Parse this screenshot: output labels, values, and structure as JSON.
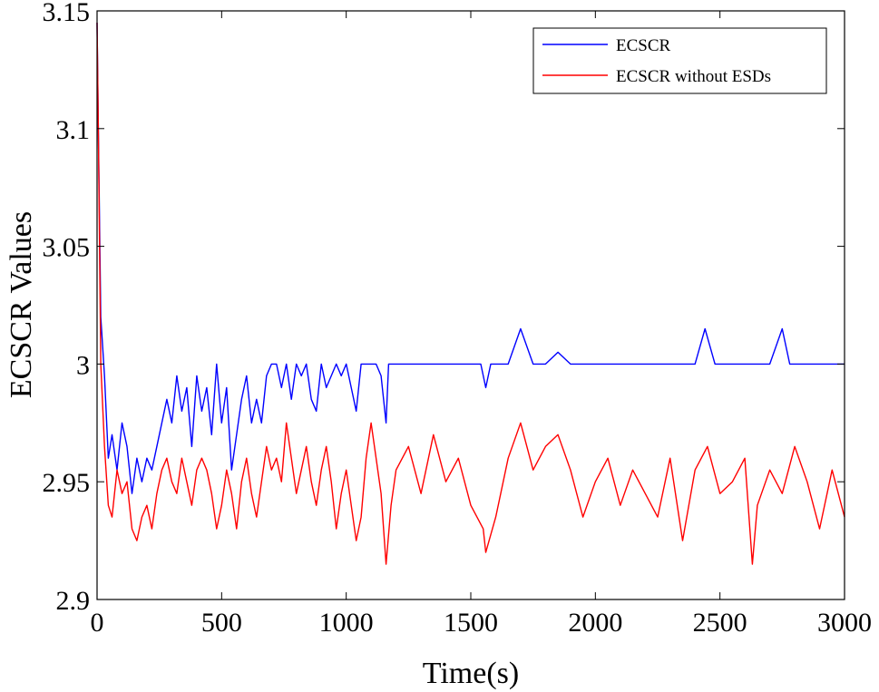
{
  "chart_data": {
    "type": "line",
    "title": "",
    "xlabel": "Time(s)",
    "ylabel": "ECSCR Values",
    "xlim": [
      0,
      3000
    ],
    "ylim": [
      2.9,
      3.15
    ],
    "grid": false,
    "legend_position": "top-right",
    "x_ticks": [
      {
        "value": 0,
        "label": "0"
      },
      {
        "value": 500,
        "label": "500"
      },
      {
        "value": 1000,
        "label": "1000"
      },
      {
        "value": 1500,
        "label": "1500"
      },
      {
        "value": 2000,
        "label": "2000"
      },
      {
        "value": 2500,
        "label": "2500"
      },
      {
        "value": 3000,
        "label": "3000"
      }
    ],
    "y_ticks": [
      {
        "value": 2.9,
        "label": "2.9"
      },
      {
        "value": 2.95,
        "label": "2.95"
      },
      {
        "value": 3.0,
        "label": "3"
      },
      {
        "value": 3.05,
        "label": "3.05"
      },
      {
        "value": 3.1,
        "label": "3.1"
      },
      {
        "value": 3.15,
        "label": "3.15"
      }
    ],
    "series": [
      {
        "name": "ECSCR",
        "color": "#0000ff",
        "x": [
          0,
          5,
          15,
          30,
          45,
          60,
          80,
          100,
          120,
          140,
          160,
          180,
          200,
          220,
          240,
          260,
          280,
          300,
          320,
          340,
          360,
          380,
          400,
          420,
          440,
          460,
          480,
          500,
          520,
          540,
          560,
          580,
          600,
          620,
          640,
          660,
          680,
          700,
          720,
          740,
          760,
          780,
          800,
          820,
          840,
          860,
          880,
          900,
          920,
          940,
          960,
          980,
          1000,
          1020,
          1040,
          1060,
          1080,
          1100,
          1120,
          1140,
          1160,
          1170,
          1180,
          1200,
          1250,
          1300,
          1350,
          1400,
          1450,
          1500,
          1540,
          1560,
          1580,
          1600,
          1650,
          1700,
          1750,
          1800,
          1850,
          1900,
          1950,
          2000,
          2050,
          2100,
          2150,
          2200,
          2250,
          2300,
          2350,
          2400,
          2440,
          2480,
          2500,
          2550,
          2600,
          2650,
          2700,
          2750,
          2780,
          2800,
          2850,
          2900,
          2950,
          3000
        ],
        "values": [
          3.145,
          3.1,
          3.02,
          2.995,
          2.96,
          2.97,
          2.955,
          2.975,
          2.965,
          2.945,
          2.96,
          2.95,
          2.96,
          2.955,
          2.965,
          2.975,
          2.985,
          2.975,
          2.995,
          2.98,
          2.99,
          2.965,
          2.995,
          2.98,
          2.99,
          2.97,
          3.0,
          2.975,
          2.99,
          2.955,
          2.97,
          2.985,
          2.995,
          2.975,
          2.985,
          2.975,
          2.995,
          3.0,
          3.0,
          2.99,
          3.0,
          2.985,
          3.0,
          2.995,
          3.0,
          2.985,
          2.98,
          3.0,
          2.99,
          2.995,
          3.0,
          2.995,
          3.0,
          2.99,
          2.98,
          3.0,
          3.0,
          3.0,
          3.0,
          2.995,
          2.975,
          3.0,
          3.0,
          3.0,
          3.0,
          3.0,
          3.0,
          3.0,
          3.0,
          3.0,
          3.0,
          2.99,
          3.0,
          3.0,
          3.0,
          3.015,
          3.0,
          3.0,
          3.005,
          3.0,
          3.0,
          3.0,
          3.0,
          3.0,
          3.0,
          3.0,
          3.0,
          3.0,
          3.0,
          3.0,
          3.015,
          3.0,
          3.0,
          3.0,
          3.0,
          3.0,
          3.0,
          3.015,
          3.0,
          3.0,
          3.0,
          3.0,
          3.0,
          3.0
        ]
      },
      {
        "name": "ECSCR without ESDs",
        "color": "#ff0000",
        "x": [
          0,
          5,
          15,
          30,
          45,
          60,
          80,
          100,
          120,
          140,
          160,
          180,
          200,
          220,
          240,
          260,
          280,
          300,
          320,
          340,
          360,
          380,
          400,
          420,
          440,
          460,
          480,
          500,
          520,
          540,
          560,
          580,
          600,
          620,
          640,
          660,
          680,
          700,
          720,
          740,
          760,
          780,
          800,
          820,
          840,
          860,
          880,
          900,
          920,
          940,
          960,
          980,
          1000,
          1020,
          1040,
          1060,
          1080,
          1100,
          1120,
          1140,
          1160,
          1180,
          1200,
          1250,
          1300,
          1350,
          1400,
          1450,
          1500,
          1550,
          1560,
          1600,
          1650,
          1700,
          1750,
          1800,
          1850,
          1900,
          1950,
          2000,
          2050,
          2100,
          2150,
          2200,
          2250,
          2300,
          2350,
          2400,
          2450,
          2500,
          2550,
          2600,
          2630,
          2650,
          2700,
          2750,
          2800,
          2850,
          2900,
          2950,
          3000
        ],
        "values": [
          3.145,
          3.1,
          3.0,
          2.965,
          2.94,
          2.935,
          2.955,
          2.945,
          2.95,
          2.93,
          2.925,
          2.935,
          2.94,
          2.93,
          2.945,
          2.955,
          2.96,
          2.95,
          2.945,
          2.96,
          2.95,
          2.94,
          2.955,
          2.96,
          2.955,
          2.945,
          2.93,
          2.94,
          2.955,
          2.945,
          2.93,
          2.95,
          2.96,
          2.945,
          2.935,
          2.95,
          2.965,
          2.955,
          2.96,
          2.95,
          2.975,
          2.96,
          2.945,
          2.955,
          2.965,
          2.95,
          2.94,
          2.955,
          2.965,
          2.95,
          2.93,
          2.945,
          2.955,
          2.94,
          2.925,
          2.935,
          2.96,
          2.975,
          2.96,
          2.945,
          2.915,
          2.94,
          2.955,
          2.965,
          2.945,
          2.97,
          2.95,
          2.96,
          2.94,
          2.93,
          2.92,
          2.935,
          2.96,
          2.975,
          2.955,
          2.965,
          2.97,
          2.955,
          2.935,
          2.95,
          2.96,
          2.94,
          2.955,
          2.945,
          2.935,
          2.96,
          2.925,
          2.955,
          2.965,
          2.945,
          2.95,
          2.96,
          2.915,
          2.94,
          2.955,
          2.945,
          2.965,
          2.95,
          2.93,
          2.955,
          2.935
        ]
      }
    ]
  }
}
